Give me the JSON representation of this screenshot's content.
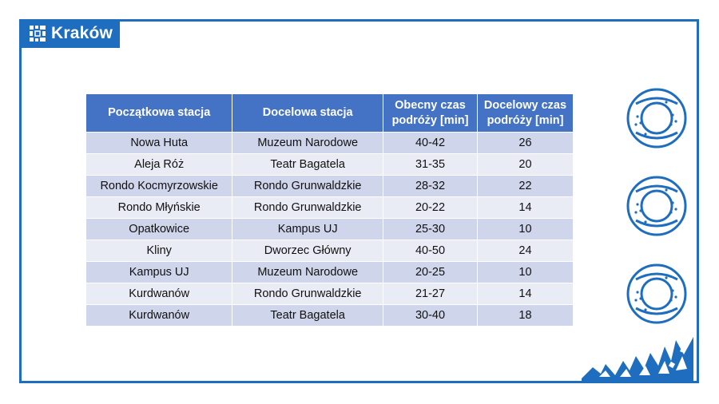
{
  "brand": {
    "name": "Kraków",
    "logo_icon": "krakow-logo-icon",
    "color": "#1f6dbf"
  },
  "table": {
    "header_color": "#4472c4",
    "row_color_odd": "#cfd5ea",
    "row_color_even": "#e9ebf5",
    "headers": [
      "Początkowa stacja",
      "Docelowa stacja",
      "Obecny czas podróży [min]",
      "Docelowy czas podróży [min]"
    ],
    "rows": [
      [
        "Nowa Huta",
        "Muzeum Narodowe",
        "40-42",
        "26"
      ],
      [
        "Aleja Róż",
        "Teatr Bagatela",
        "31-35",
        "20"
      ],
      [
        "Rondo Kocmyrzowskie",
        "Rondo Grunwaldzkie",
        "28-32",
        "22"
      ],
      [
        "Rondo Młyńskie",
        "Rondo Grunwaldzkie",
        "20-22",
        "14"
      ],
      [
        "Opatkowice",
        "Kampus UJ",
        "25-30",
        "10"
      ],
      [
        "Kliny",
        "Dworzec Główny",
        "40-50",
        "24"
      ],
      [
        "Kampus UJ",
        "Muzeum Narodowe",
        "20-25",
        "10"
      ],
      [
        "Kurdwanów",
        "Rondo Grunwaldzkie",
        "21-27",
        "14"
      ],
      [
        "Kurdwanów",
        "Teatr Bagatela",
        "30-40",
        "18"
      ]
    ]
  },
  "decorations": {
    "side_icons": [
      "pretzel-icon",
      "pretzel-icon",
      "pretzel-icon"
    ],
    "corner_graphic": "city-skyline-icon"
  }
}
